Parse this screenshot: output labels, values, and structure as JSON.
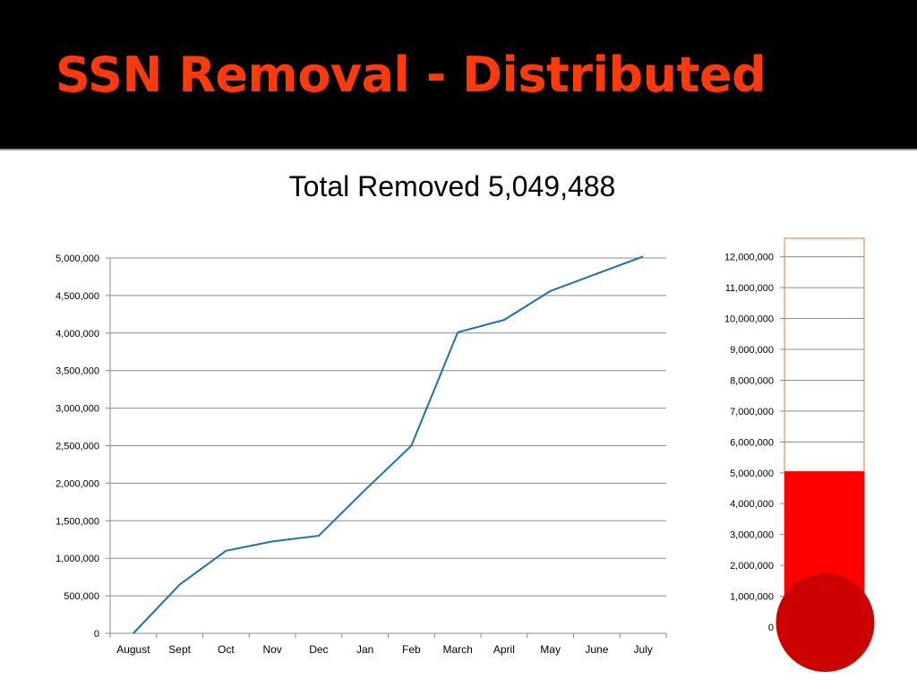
{
  "slide": {
    "title": "SSN Removal - Distributed",
    "subtitle": "Total Removed 5,049,488"
  },
  "colors": {
    "title": "#ff3a0a",
    "line": "#1f6fb5",
    "grid": "#8c8c8c",
    "thermo_fill": "#ff0000",
    "thermo_bulb": "#cc0000",
    "thermo_border": "#e07b39"
  },
  "chart_data": [
    {
      "type": "line",
      "title": "",
      "xlabel": "",
      "ylabel": "",
      "categories": [
        "August",
        "Sept",
        "Oct",
        "Nov",
        "Dec",
        "Jan",
        "Feb",
        "March",
        "April",
        "May",
        "June",
        "July"
      ],
      "series": [
        {
          "values": [
            0,
            650000,
            1100000,
            1225000,
            1300000,
            1910000,
            2500000,
            4010000,
            4175000,
            4560000,
            4790000,
            5020000
          ]
        }
      ],
      "ylim": [
        0,
        5000000
      ],
      "yticks": [
        0,
        500000,
        1000000,
        1500000,
        2000000,
        2500000,
        3000000,
        3500000,
        4000000,
        4500000,
        5000000
      ],
      "ytick_labels": [
        "0",
        "500,000",
        "1,000,000",
        "1,500,000",
        "2,000,000",
        "2,500,000",
        "3,000,000",
        "3,500,000",
        "4,000,000",
        "4,500,000",
        "5,000,000"
      ],
      "grid": true,
      "legend": "none"
    },
    {
      "type": "bar",
      "title": "",
      "value": 5049488,
      "ylim": [
        0,
        12600000
      ],
      "yticks": [
        0,
        1000000,
        2000000,
        3000000,
        4000000,
        5000000,
        6000000,
        7000000,
        8000000,
        9000000,
        10000000,
        11000000,
        12000000
      ],
      "ytick_labels": [
        "0",
        "1,000,000",
        "2,000,000",
        "3,000,000",
        "4,000,000",
        "5,000,000",
        "6,000,000",
        "7,000,000",
        "8,000,000",
        "9,000,000",
        "10,000,000",
        "11,000,000",
        "12,000,000"
      ],
      "grid": true,
      "style": "thermometer"
    }
  ]
}
